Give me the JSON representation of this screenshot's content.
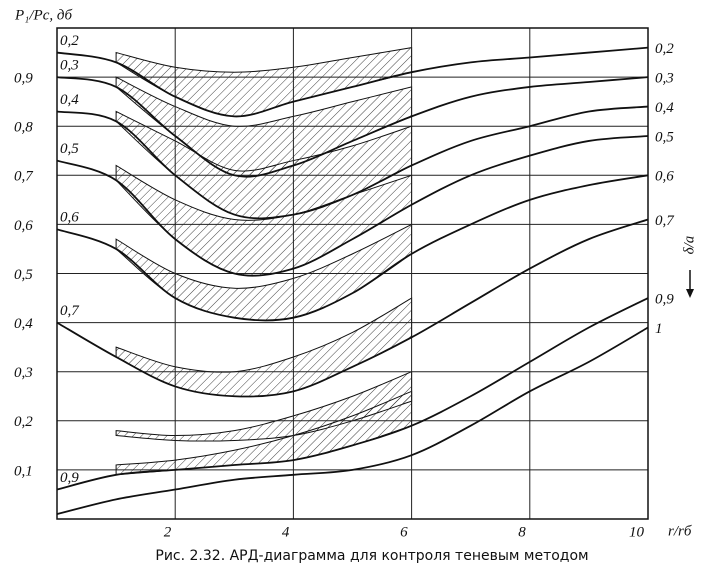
{
  "chart_data": {
    "type": "line",
    "title": "Рис. 2.32. АРД-диаграмма для контроля теневым методом",
    "y_label": "P₁/Pc, дб",
    "x_label": "r/rб",
    "right_label": "δ/a",
    "x": [
      0,
      1,
      2,
      3,
      4,
      5,
      6,
      7,
      8,
      9,
      10
    ],
    "xlim": [
      0,
      10
    ],
    "xticks": [
      2,
      4,
      6,
      8,
      10
    ],
    "ylim": [
      0,
      1
    ],
    "yticks": [
      {
        "value": 0.1,
        "label": "0,1"
      },
      {
        "value": 0.2,
        "label": "0,2"
      },
      {
        "value": 0.3,
        "label": "0,3"
      },
      {
        "value": 0.4,
        "label": "0,4"
      },
      {
        "value": 0.5,
        "label": "0,5"
      },
      {
        "value": 0.6,
        "label": "0,6"
      },
      {
        "value": 0.7,
        "label": "0,7"
      },
      {
        "value": 0.8,
        "label": "0,8"
      },
      {
        "value": 0.9,
        "label": "0,9"
      }
    ],
    "grid": true,
    "color": "#111111",
    "series": [
      {
        "name": "0,2",
        "label_at_start": true,
        "values": [
          0.95,
          0.93,
          0.86,
          0.82,
          0.85,
          0.88,
          0.91,
          0.93,
          0.94,
          0.95,
          0.96
        ]
      },
      {
        "name": "0,3",
        "label_at_start": true,
        "values": [
          0.9,
          0.88,
          0.78,
          0.7,
          0.72,
          0.77,
          0.82,
          0.86,
          0.88,
          0.89,
          0.9
        ]
      },
      {
        "name": "0,4",
        "label_at_start": true,
        "values": [
          0.83,
          0.81,
          0.7,
          0.62,
          0.62,
          0.66,
          0.72,
          0.77,
          0.8,
          0.83,
          0.84
        ]
      },
      {
        "name": "0,5",
        "label_at_start": true,
        "values": [
          0.73,
          0.69,
          0.57,
          0.5,
          0.51,
          0.57,
          0.64,
          0.7,
          0.74,
          0.77,
          0.78
        ]
      },
      {
        "name": "0,6",
        "label_at_start": true,
        "values": [
          0.59,
          0.55,
          0.45,
          0.41,
          0.41,
          0.46,
          0.54,
          0.6,
          0.65,
          0.68,
          0.7
        ]
      },
      {
        "name": "0,7",
        "label_at_start": true,
        "values": [
          0.4,
          0.33,
          0.27,
          0.25,
          0.26,
          0.31,
          0.37,
          0.44,
          0.51,
          0.57,
          0.61
        ]
      },
      {
        "name": "0,9",
        "label_at_start": true,
        "values": [
          0.06,
          0.09,
          0.1,
          0.11,
          0.12,
          0.15,
          0.19,
          0.25,
          0.32,
          0.39,
          0.45
        ]
      },
      {
        "name": "1",
        "label_at_start": false,
        "values": [
          0.01,
          0.04,
          0.06,
          0.08,
          0.09,
          0.1,
          0.13,
          0.19,
          0.26,
          0.32,
          0.39
        ]
      }
    ],
    "band_x": [
      1,
      2,
      3,
      4,
      5,
      6
    ],
    "bands": [
      {
        "lower": [
          0.93,
          0.86,
          0.82,
          0.85,
          0.88,
          0.91
        ],
        "upper": [
          0.95,
          0.92,
          0.91,
          0.92,
          0.94,
          0.96
        ]
      },
      {
        "lower": [
          0.88,
          0.78,
          0.7,
          0.72,
          0.77,
          0.82
        ],
        "upper": [
          0.9,
          0.84,
          0.8,
          0.82,
          0.85,
          0.88
        ]
      },
      {
        "lower": [
          0.81,
          0.7,
          0.62,
          0.62,
          0.66,
          0.72
        ],
        "upper": [
          0.83,
          0.77,
          0.71,
          0.73,
          0.76,
          0.8
        ]
      },
      {
        "lower": [
          0.69,
          0.57,
          0.5,
          0.51,
          0.57,
          0.64
        ],
        "upper": [
          0.72,
          0.65,
          0.61,
          0.62,
          0.66,
          0.7
        ]
      },
      {
        "lower": [
          0.55,
          0.45,
          0.41,
          0.41,
          0.46,
          0.54
        ],
        "upper": [
          0.57,
          0.5,
          0.47,
          0.49,
          0.54,
          0.6
        ]
      },
      {
        "lower": [
          0.33,
          0.27,
          0.25,
          0.26,
          0.31,
          0.37
        ],
        "upper": [
          0.35,
          0.31,
          0.3,
          0.33,
          0.38,
          0.45
        ]
      },
      {
        "lower": [
          0.17,
          0.16,
          0.16,
          0.17,
          0.2,
          0.24
        ],
        "upper": [
          0.18,
          0.17,
          0.18,
          0.21,
          0.25,
          0.3
        ]
      },
      {
        "lower": [
          0.09,
          0.1,
          0.11,
          0.12,
          0.15,
          0.19
        ],
        "upper": [
          0.11,
          0.12,
          0.14,
          0.17,
          0.21,
          0.26
        ]
      }
    ]
  }
}
